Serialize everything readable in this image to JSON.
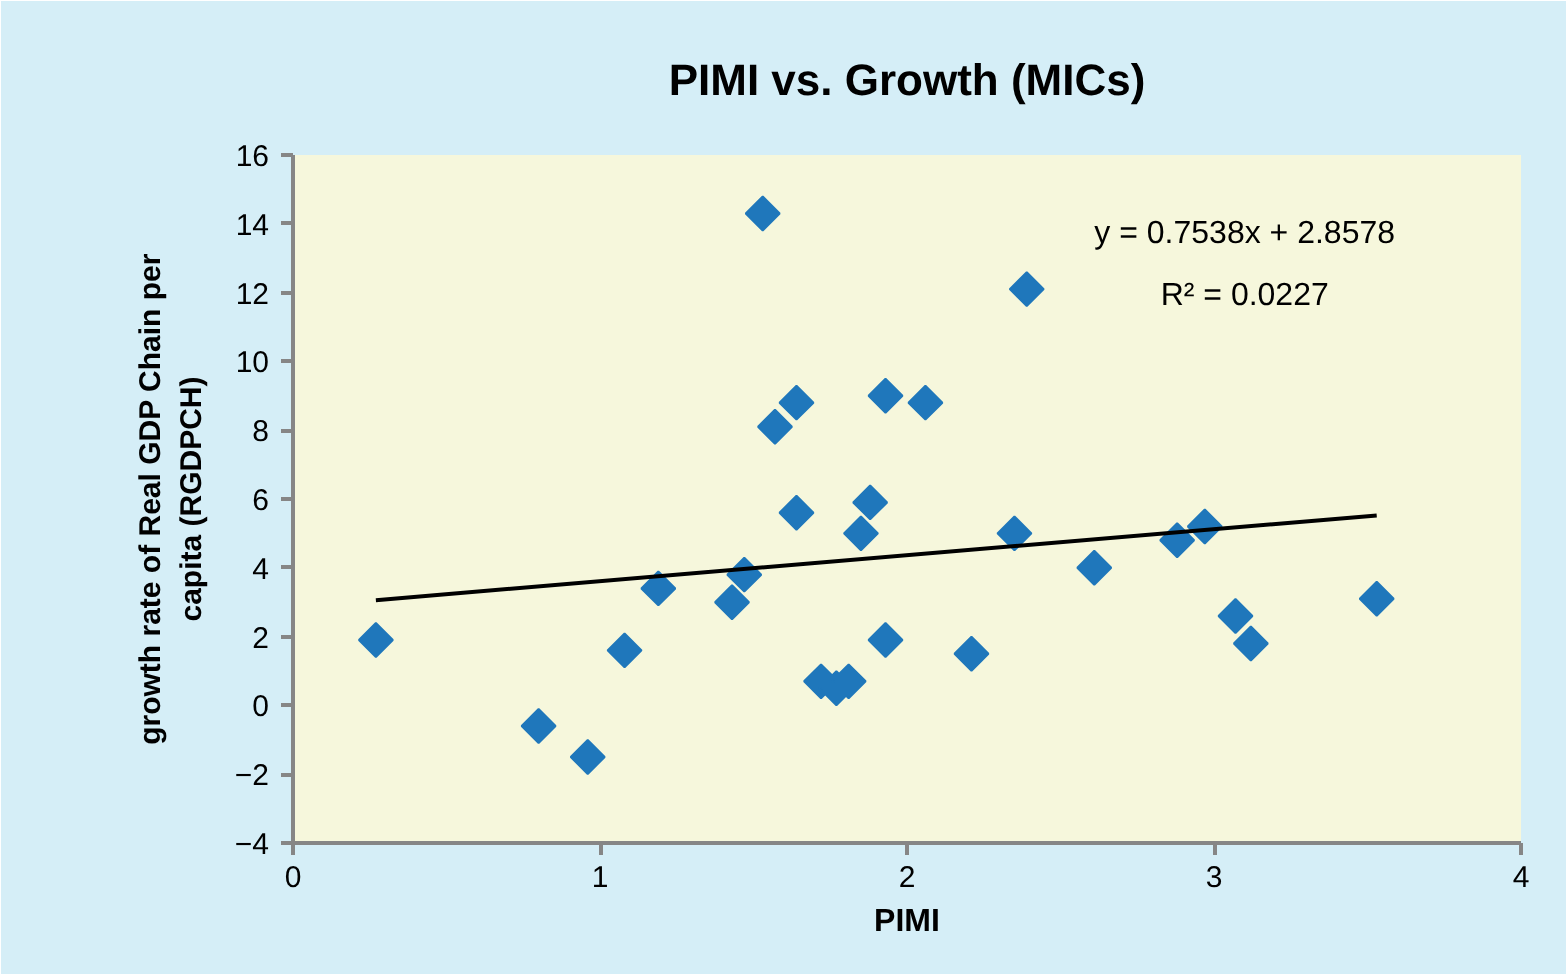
{
  "chart_data": {
    "type": "scatter",
    "title": "PIMI vs. Growth (MICs)",
    "xlabel": "PIMI",
    "ylabel": "growth rate of Real GDP Chain per capita (RGDPCH)",
    "xlim": [
      0,
      4
    ],
    "xticks": [
      0,
      1,
      2,
      3,
      4
    ],
    "ylim": [
      -4,
      16
    ],
    "yticks": [
      -4,
      -2,
      0,
      2,
      4,
      6,
      8,
      10,
      12,
      14,
      16
    ],
    "grid": false,
    "series": [
      {
        "marker": "diamond",
        "color": "#1f77bb",
        "x": [
          0.27,
          0.8,
          0.96,
          1.08,
          1.19,
          1.43,
          1.47,
          1.53,
          1.57,
          1.64,
          1.64,
          1.72,
          1.77,
          1.81,
          1.85,
          1.88,
          1.93,
          1.93,
          2.06,
          2.21,
          2.35,
          2.39,
          2.61,
          2.88,
          2.97,
          3.07,
          3.12,
          3.53
        ],
        "values": [
          1.9,
          -0.6,
          -1.5,
          1.6,
          3.4,
          3.0,
          3.8,
          14.3,
          8.1,
          8.8,
          5.6,
          0.7,
          0.5,
          0.7,
          5.0,
          5.9,
          9.0,
          1.9,
          8.8,
          1.5,
          5.0,
          12.1,
          4.0,
          4.8,
          5.2,
          2.6,
          1.8,
          3.1
        ]
      },
      {
        "type": "line",
        "color": "#000000",
        "x": [
          0.27,
          3.53
        ],
        "values": [
          3.06,
          5.52
        ]
      }
    ],
    "annotations": [
      "y = 0.7538x + 2.8578",
      "R² = 0.0227"
    ]
  }
}
